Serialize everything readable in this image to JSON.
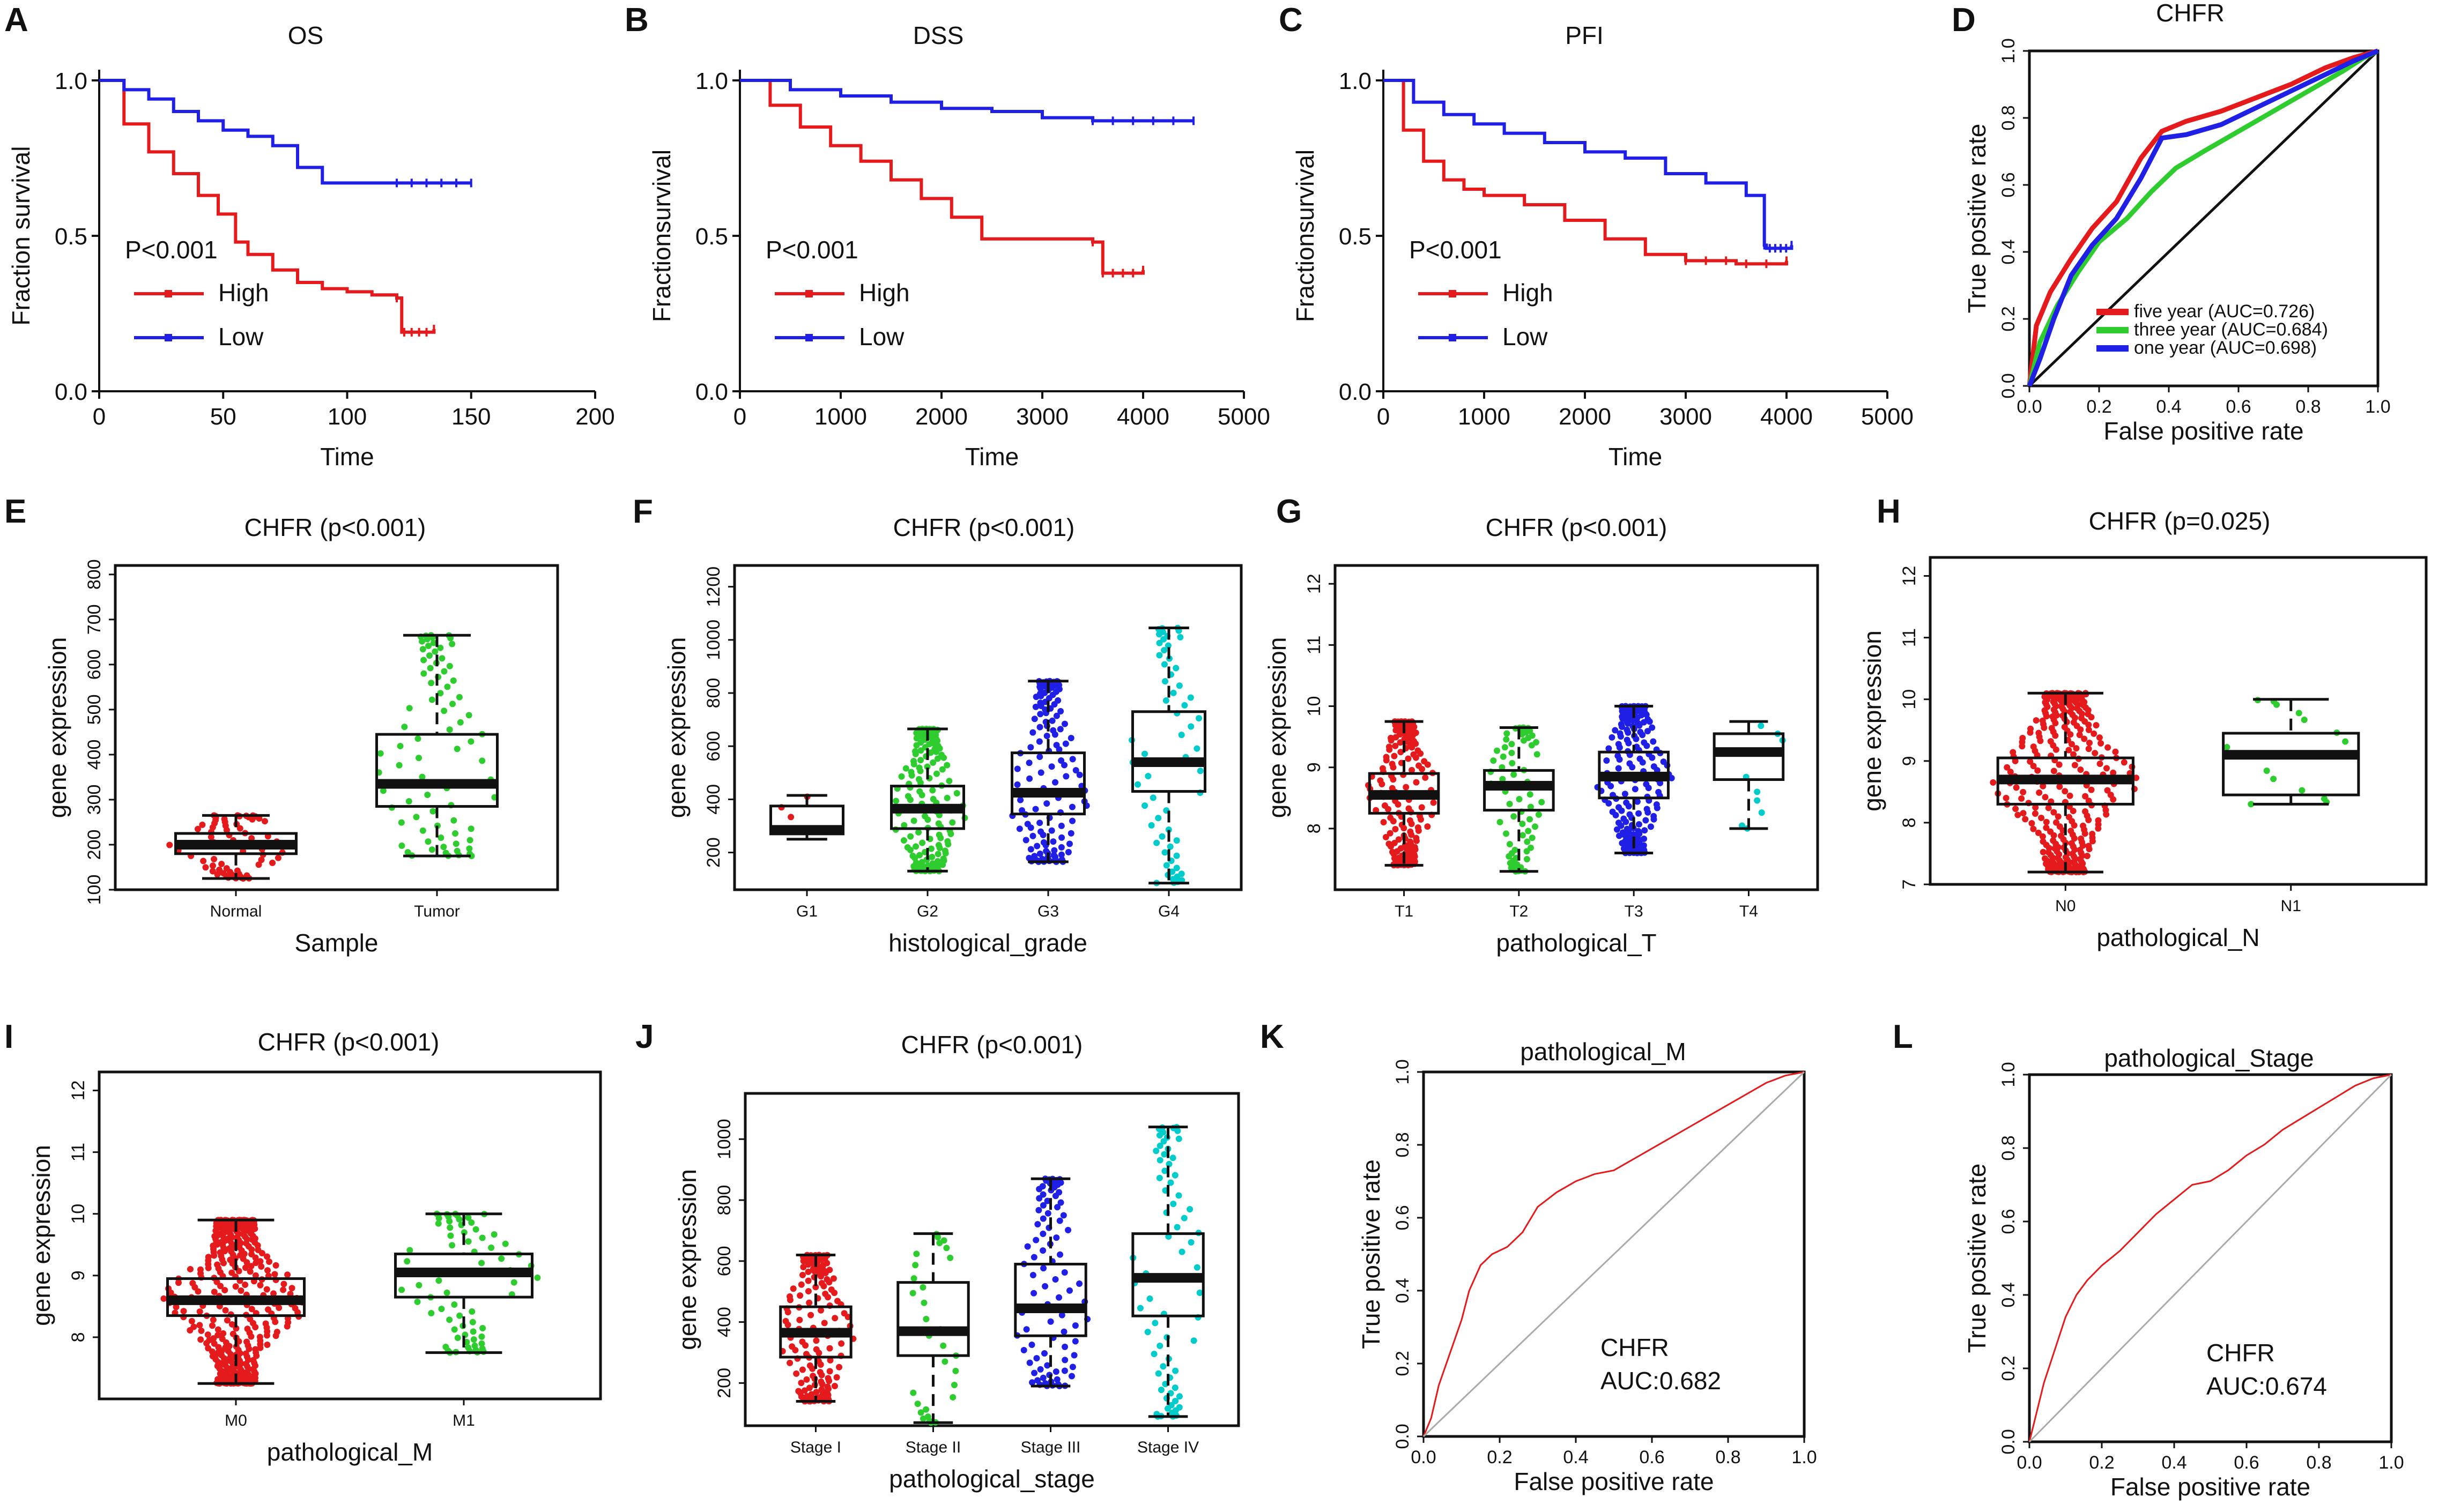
{
  "chart_data": [
    {
      "panel": "A",
      "type": "line",
      "subtype": "kaplan-meier",
      "title": "OS",
      "xlabel": "Time",
      "ylabel": "Fraction survival",
      "xlim": [
        0,
        200
      ],
      "ylim": [
        0,
        1
      ],
      "xticks": [
        "0",
        "50",
        "100",
        "150",
        "200"
      ],
      "yticks": [
        "0.0",
        "0.5",
        "1.0"
      ],
      "pvalue": "P<0.001",
      "series": [
        {
          "name": "High",
          "color": "#e41a1c",
          "x": [
            0,
            10,
            20,
            30,
            40,
            48,
            55,
            60,
            70,
            80,
            90,
            100,
            110,
            120,
            122,
            135
          ],
          "y": [
            1.0,
            0.86,
            0.77,
            0.7,
            0.63,
            0.57,
            0.48,
            0.44,
            0.39,
            0.35,
            0.33,
            0.32,
            0.31,
            0.3,
            0.19,
            0.2
          ]
        },
        {
          "name": "Low",
          "color": "#1f1fe6",
          "x": [
            0,
            10,
            20,
            30,
            40,
            50,
            60,
            70,
            80,
            90,
            100,
            120,
            140,
            150
          ],
          "y": [
            1.0,
            0.97,
            0.94,
            0.9,
            0.87,
            0.84,
            0.82,
            0.79,
            0.72,
            0.67,
            0.67,
            0.67,
            0.67,
            0.67
          ]
        }
      ]
    },
    {
      "panel": "B",
      "type": "line",
      "subtype": "kaplan-meier",
      "title": "DSS",
      "xlabel": "Time",
      "ylabel": "Fractionsurvival",
      "xlim": [
        0,
        5000
      ],
      "ylim": [
        0,
        1
      ],
      "xticks": [
        "0",
        "1000",
        "2000",
        "3000",
        "4000",
        "5000"
      ],
      "yticks": [
        "0.0",
        "0.5",
        "1.0"
      ],
      "pvalue": "P<0.001",
      "series": [
        {
          "name": "High",
          "color": "#e41a1c",
          "x": [
            0,
            300,
            600,
            900,
            1200,
            1500,
            1800,
            2100,
            2400,
            3000,
            3500,
            3600,
            4000
          ],
          "y": [
            1.0,
            0.92,
            0.85,
            0.79,
            0.74,
            0.68,
            0.62,
            0.56,
            0.49,
            0.49,
            0.48,
            0.38,
            0.39
          ]
        },
        {
          "name": "Low",
          "color": "#1f1fe6",
          "x": [
            0,
            500,
            1000,
            1500,
            2000,
            2500,
            3000,
            3500,
            4000,
            4500
          ],
          "y": [
            1.0,
            0.97,
            0.95,
            0.93,
            0.91,
            0.9,
            0.88,
            0.87,
            0.87,
            0.87
          ]
        }
      ]
    },
    {
      "panel": "C",
      "type": "line",
      "subtype": "kaplan-meier",
      "title": "PFI",
      "xlabel": "Time",
      "ylabel": "Fractionsurvival",
      "xlim": [
        0,
        5000
      ],
      "ylim": [
        0,
        1
      ],
      "xticks": [
        "0",
        "1000",
        "2000",
        "3000",
        "4000",
        "5000"
      ],
      "yticks": [
        "0.0",
        "0.5",
        "1.0"
      ],
      "pvalue": "P<0.001",
      "series": [
        {
          "name": "High",
          "color": "#e41a1c",
          "x": [
            0,
            200,
            400,
            600,
            800,
            1000,
            1400,
            1800,
            2200,
            2600,
            3000,
            3500,
            4000
          ],
          "y": [
            1.0,
            0.84,
            0.74,
            0.68,
            0.65,
            0.63,
            0.6,
            0.55,
            0.49,
            0.44,
            0.42,
            0.41,
            0.42
          ]
        },
        {
          "name": "Low",
          "color": "#1f1fe6",
          "x": [
            0,
            300,
            600,
            900,
            1200,
            1600,
            2000,
            2400,
            2800,
            3200,
            3600,
            3780,
            3800,
            4050
          ],
          "y": [
            1.0,
            0.93,
            0.89,
            0.86,
            0.83,
            0.8,
            0.77,
            0.75,
            0.7,
            0.67,
            0.63,
            0.47,
            0.46,
            0.47
          ]
        }
      ]
    },
    {
      "panel": "D",
      "type": "line",
      "subtype": "roc",
      "title": "CHFR",
      "xlabel": "False positive rate",
      "ylabel": "True positive rate",
      "xlim": [
        0,
        1
      ],
      "ylim": [
        0,
        1
      ],
      "xticks": [
        "0.0",
        "0.2",
        "0.4",
        "0.6",
        "0.8",
        "1.0"
      ],
      "yticks": [
        "0.0",
        "0.2",
        "0.4",
        "0.6",
        "0.8",
        "1.0"
      ],
      "series": [
        {
          "name": "five year (AUC=0.726)",
          "color": "#e41a1c",
          "x": [
            0,
            0.02,
            0.06,
            0.12,
            0.18,
            0.25,
            0.32,
            0.38,
            0.45,
            0.55,
            0.65,
            0.75,
            0.85,
            0.93,
            1.0
          ],
          "y": [
            0,
            0.18,
            0.28,
            0.38,
            0.47,
            0.55,
            0.68,
            0.76,
            0.79,
            0.82,
            0.86,
            0.9,
            0.95,
            0.98,
            1.0
          ]
        },
        {
          "name": "three year (AUC=0.684)",
          "color": "#2ecc2e",
          "x": [
            0,
            0.03,
            0.08,
            0.14,
            0.2,
            0.28,
            0.35,
            0.42,
            0.5,
            0.6,
            0.7,
            0.8,
            0.9,
            0.96,
            1.0
          ],
          "y": [
            0,
            0.13,
            0.24,
            0.34,
            0.43,
            0.5,
            0.58,
            0.65,
            0.7,
            0.76,
            0.82,
            0.88,
            0.94,
            0.98,
            1.0
          ]
        },
        {
          "name": "one year (AUC=0.698)",
          "color": "#1f1fe6",
          "x": [
            0,
            0.03,
            0.07,
            0.12,
            0.18,
            0.25,
            0.32,
            0.38,
            0.45,
            0.55,
            0.65,
            0.75,
            0.85,
            0.93,
            1.0
          ],
          "y": [
            0,
            0.08,
            0.2,
            0.33,
            0.42,
            0.5,
            0.62,
            0.74,
            0.75,
            0.78,
            0.83,
            0.88,
            0.93,
            0.97,
            1.0
          ]
        }
      ]
    },
    {
      "panel": "E",
      "type": "box",
      "title": "CHFR (p<0.001)",
      "xlabel": "Sample",
      "ylabel": "gene expression",
      "ylim": [
        100,
        820
      ],
      "yticks": [
        "100",
        "200",
        "300",
        "400",
        "500",
        "600",
        "700",
        "800"
      ],
      "categories": [
        "Normal",
        "Tumor"
      ],
      "groups": [
        {
          "name": "Normal",
          "color": "#e41a1c",
          "min": 125,
          "q1": 180,
          "median": 200,
          "q3": 225,
          "max": 265,
          "n": 70
        },
        {
          "name": "Tumor",
          "color": "#2ecc2e",
          "min": 175,
          "q1": 285,
          "median": 335,
          "q3": 445,
          "max": 665,
          "n": 80
        }
      ]
    },
    {
      "panel": "F",
      "type": "box",
      "title": "CHFR (p<0.001)",
      "xlabel": "histological_grade",
      "ylabel": "gene expression",
      "ylim": [
        60,
        1280
      ],
      "yticks": [
        "200",
        "400",
        "600",
        "800",
        "1000",
        "1200"
      ],
      "categories": [
        "G1",
        "G2",
        "G3",
        "G4"
      ],
      "groups": [
        {
          "name": "G1",
          "color": "#e41a1c",
          "min": 250,
          "q1": 270,
          "median": 285,
          "q3": 375,
          "max": 415,
          "n": 4
        },
        {
          "name": "G2",
          "color": "#2ecc2e",
          "min": 130,
          "q1": 290,
          "median": 365,
          "q3": 450,
          "max": 665,
          "n": 150
        },
        {
          "name": "G3",
          "color": "#1f1fe6",
          "min": 165,
          "q1": 345,
          "median": 425,
          "q3": 575,
          "max": 845,
          "n": 130
        },
        {
          "name": "G4",
          "color": "#00cccc",
          "min": 85,
          "q1": 430,
          "median": 540,
          "q3": 730,
          "max": 1045,
          "n": 60
        }
      ]
    },
    {
      "panel": "G",
      "type": "box",
      "title": "CHFR (p<0.001)",
      "xlabel": "pathological_T",
      "ylabel": "gene expression",
      "ylim": [
        7,
        12.3
      ],
      "yticks": [
        "8",
        "9",
        "10",
        "11",
        "12"
      ],
      "categories": [
        "T1",
        "T2",
        "T3",
        "T4"
      ],
      "groups": [
        {
          "name": "T1",
          "color": "#e41a1c",
          "min": 7.4,
          "q1": 8.25,
          "median": 8.55,
          "q3": 8.9,
          "max": 9.75,
          "n": 170
        },
        {
          "name": "T2",
          "color": "#2ecc2e",
          "min": 7.3,
          "q1": 8.3,
          "median": 8.7,
          "q3": 8.95,
          "max": 9.65,
          "n": 70
        },
        {
          "name": "T3",
          "color": "#1f1fe6",
          "min": 7.6,
          "q1": 8.5,
          "median": 8.85,
          "q3": 9.25,
          "max": 10.0,
          "n": 190
        },
        {
          "name": "T4",
          "color": "#00cccc",
          "min": 8.0,
          "q1": 8.8,
          "median": 9.25,
          "q3": 9.55,
          "max": 9.75,
          "n": 10
        }
      ]
    },
    {
      "panel": "H",
      "type": "box",
      "title": "CHFR (p=0.025)",
      "xlabel": "pathological_N",
      "ylabel": "gene expression",
      "ylim": [
        7,
        12.3
      ],
      "yticks": [
        "7",
        "8",
        "9",
        "10",
        "11",
        "12"
      ],
      "categories": [
        "N0",
        "N1"
      ],
      "groups": [
        {
          "name": "N0",
          "color": "#e41a1c",
          "min": 7.2,
          "q1": 8.3,
          "median": 8.7,
          "q3": 9.05,
          "max": 10.1,
          "n": 330
        },
        {
          "name": "N1",
          "color": "#2ecc2e",
          "min": 8.3,
          "q1": 8.45,
          "median": 9.1,
          "q3": 9.45,
          "max": 10.0,
          "n": 15
        }
      ]
    },
    {
      "panel": "I",
      "type": "box",
      "title": "CHFR (p<0.001)",
      "xlabel": "pathological_M",
      "ylabel": "gene expression",
      "ylim": [
        7,
        12.3
      ],
      "yticks": [
        "8",
        "9",
        "10",
        "11",
        "12"
      ],
      "categories": [
        "M0",
        "M1"
      ],
      "groups": [
        {
          "name": "M0",
          "color": "#e41a1c",
          "min": 7.25,
          "q1": 8.35,
          "median": 8.6,
          "q3": 8.95,
          "max": 9.9,
          "n": 400
        },
        {
          "name": "M1",
          "color": "#2ecc2e",
          "min": 7.75,
          "q1": 8.65,
          "median": 9.05,
          "q3": 9.35,
          "max": 10.0,
          "n": 70
        }
      ]
    },
    {
      "panel": "J",
      "type": "box",
      "title": "CHFR (p<0.001)",
      "xlabel": "pathological_stage",
      "ylabel": "gene expression",
      "ylim": [
        60,
        1150
      ],
      "yticks": [
        "200",
        "400",
        "600",
        "800",
        "1000"
      ],
      "categories": [
        "Stage I",
        "Stage II",
        "Stage III",
        "Stage IV"
      ],
      "groups": [
        {
          "name": "Stage I",
          "color": "#e41a1c",
          "min": 140,
          "q1": 285,
          "median": 365,
          "q3": 450,
          "max": 620,
          "n": 150
        },
        {
          "name": "Stage II",
          "color": "#2ecc2e",
          "min": 70,
          "q1": 290,
          "median": 370,
          "q3": 530,
          "max": 690,
          "n": 30
        },
        {
          "name": "Stage III",
          "color": "#1f1fe6",
          "min": 190,
          "q1": 355,
          "median": 445,
          "q3": 590,
          "max": 870,
          "n": 90
        },
        {
          "name": "Stage IV",
          "color": "#00cccc",
          "min": 90,
          "q1": 420,
          "median": 545,
          "q3": 690,
          "max": 1040,
          "n": 70
        }
      ]
    },
    {
      "panel": "K",
      "type": "line",
      "subtype": "roc",
      "title": "pathological_M",
      "xlabel": "False positive rate",
      "ylabel": "True positive rate",
      "xlim": [
        0,
        1
      ],
      "ylim": [
        0,
        1
      ],
      "xticks": [
        "0.0",
        "0.2",
        "0.4",
        "0.6",
        "0.8",
        "1.0"
      ],
      "yticks": [
        "0.0",
        "0.2",
        "0.4",
        "0.6",
        "0.8",
        "1.0"
      ],
      "annotation": [
        "CHFR",
        "AUC:0.682"
      ],
      "series": [
        {
          "name": "CHFR",
          "color": "#e41a1c",
          "x": [
            0,
            0.02,
            0.04,
            0.06,
            0.08,
            0.1,
            0.12,
            0.15,
            0.18,
            0.22,
            0.26,
            0.3,
            0.35,
            0.4,
            0.45,
            0.5,
            0.55,
            0.6,
            0.65,
            0.7,
            0.75,
            0.8,
            0.85,
            0.9,
            0.95,
            1.0
          ],
          "y": [
            0,
            0.05,
            0.14,
            0.2,
            0.26,
            0.32,
            0.4,
            0.47,
            0.5,
            0.52,
            0.56,
            0.63,
            0.67,
            0.7,
            0.72,
            0.73,
            0.76,
            0.79,
            0.82,
            0.85,
            0.88,
            0.91,
            0.94,
            0.97,
            0.99,
            1.0
          ]
        },
        {
          "name": "reference",
          "color": "#aaaaaa",
          "x": [
            0,
            1
          ],
          "y": [
            0,
            1
          ]
        }
      ]
    },
    {
      "panel": "L",
      "type": "line",
      "subtype": "roc",
      "title": "pathological_Stage",
      "xlabel": "False positive rate",
      "ylabel": "True positive rate",
      "xlim": [
        0,
        1
      ],
      "ylim": [
        0,
        1
      ],
      "xticks": [
        "0.0",
        "0.2",
        "0.4",
        "0.6",
        "0.8",
        "1.0"
      ],
      "yticks": [
        "0.0",
        "0.2",
        "0.4",
        "0.6",
        "0.8",
        "1.0"
      ],
      "annotation": [
        "CHFR",
        "AUC:0.674"
      ],
      "series": [
        {
          "name": "CHFR",
          "color": "#e41a1c",
          "x": [
            0,
            0.02,
            0.04,
            0.06,
            0.08,
            0.1,
            0.13,
            0.16,
            0.2,
            0.25,
            0.3,
            0.35,
            0.4,
            0.45,
            0.5,
            0.55,
            0.6,
            0.65,
            0.7,
            0.75,
            0.8,
            0.85,
            0.9,
            0.95,
            1.0
          ],
          "y": [
            0,
            0.08,
            0.16,
            0.22,
            0.28,
            0.34,
            0.4,
            0.44,
            0.48,
            0.52,
            0.57,
            0.62,
            0.66,
            0.7,
            0.71,
            0.74,
            0.78,
            0.81,
            0.85,
            0.88,
            0.91,
            0.94,
            0.97,
            0.99,
            1.0
          ]
        },
        {
          "name": "reference",
          "color": "#aaaaaa",
          "x": [
            0,
            1
          ],
          "y": [
            0,
            1
          ]
        }
      ]
    }
  ]
}
